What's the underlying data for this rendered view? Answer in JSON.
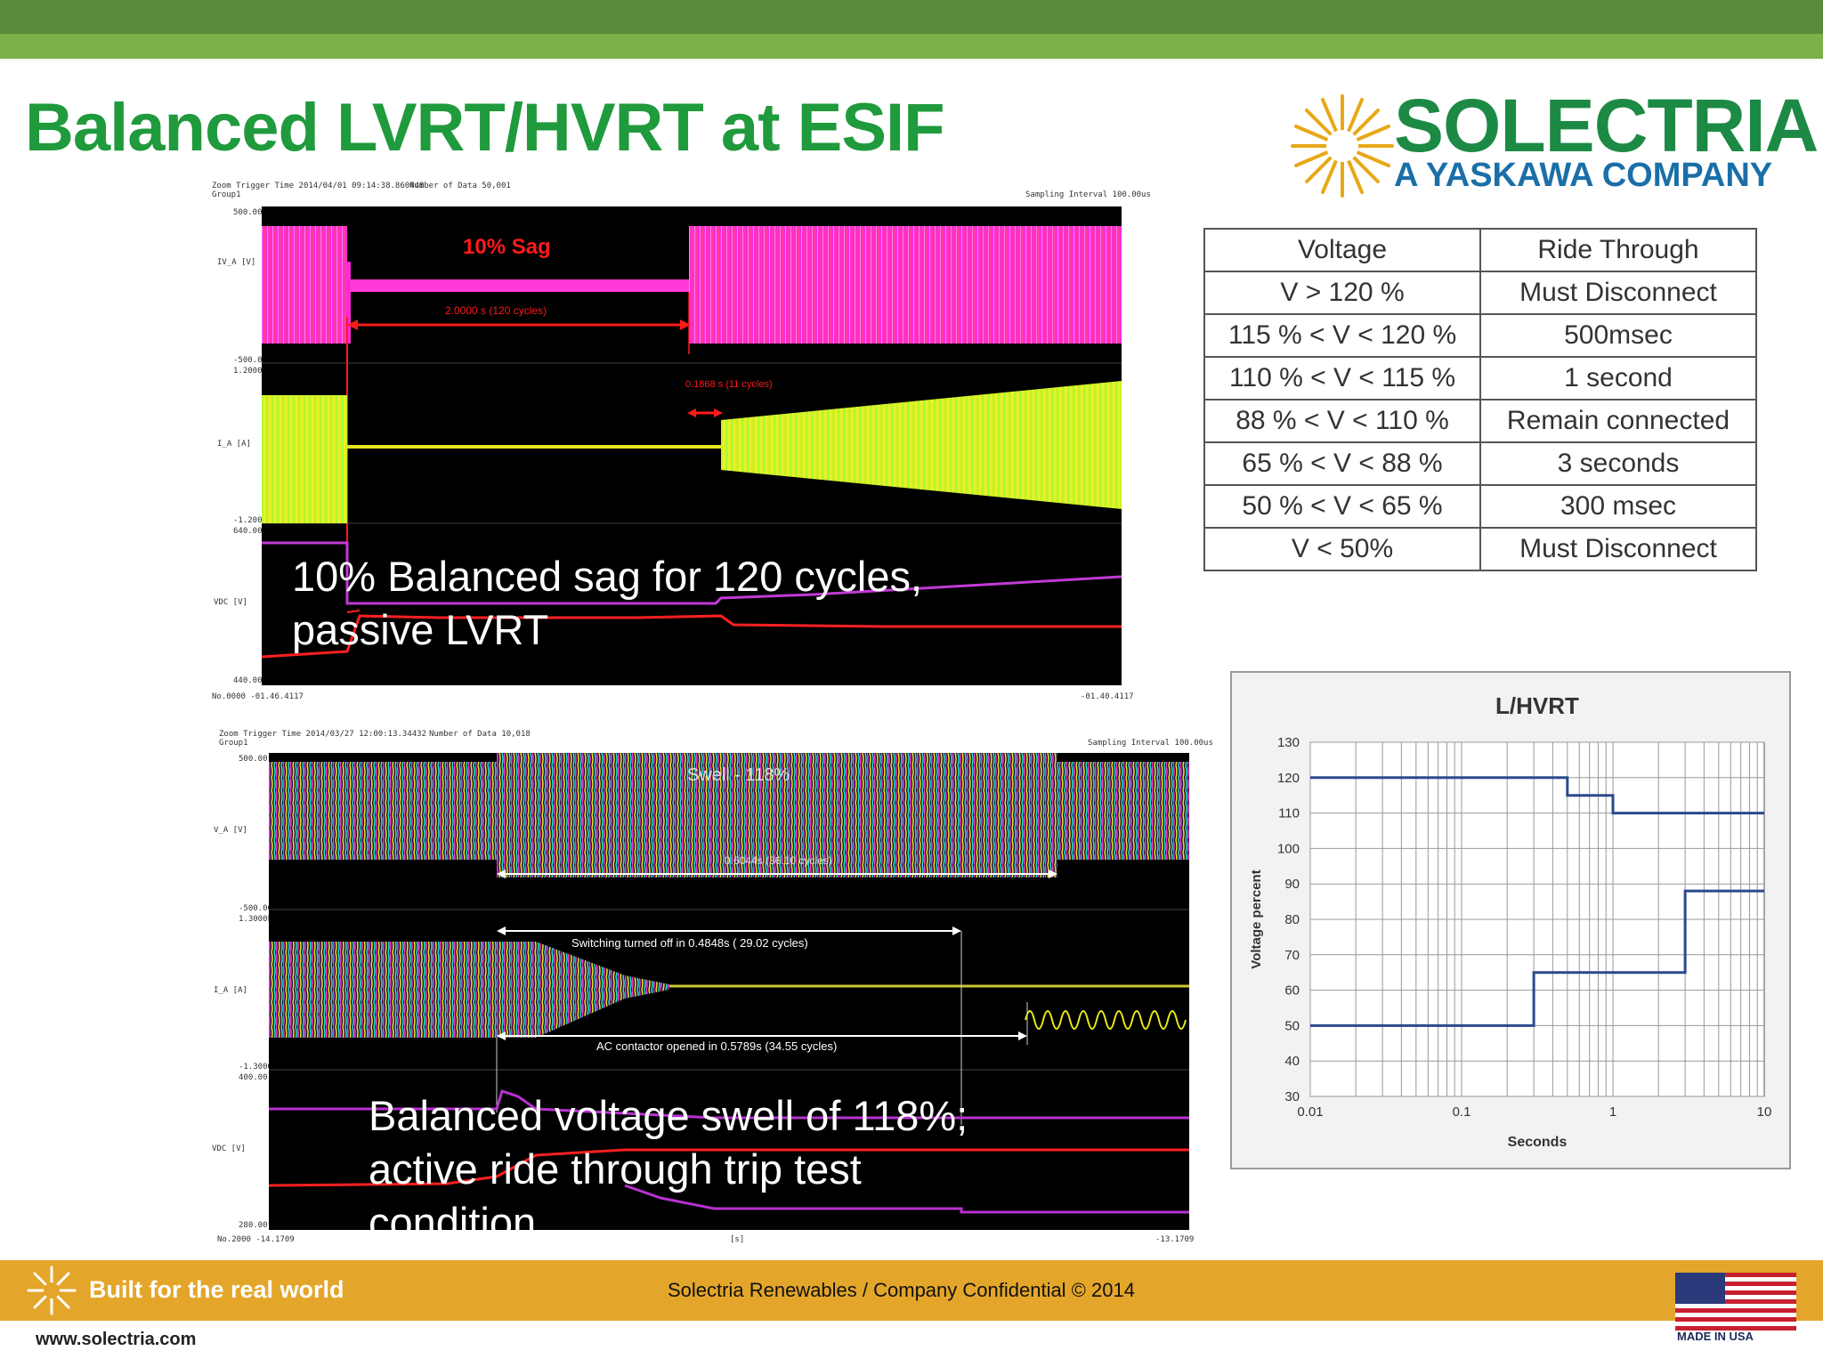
{
  "slide": {
    "title": "Balanced LVRT/HVRT at ESIF",
    "logo": {
      "main": "SOLECTRIA",
      "sub": "A YASKAWA COMPANY"
    }
  },
  "scope1": {
    "header_left": "Zoom Trigger Time 2014/04/01 09:14:38.860448",
    "header_group": "Group1",
    "header_mid": "Number of Data 50,001",
    "header_right": "Sampling Interval 100.00us",
    "sag_label": "10% Sag",
    "sag_duration": "2.0000 s (120 cycles)",
    "recovery_label": "0.1868 s (11 cycles)",
    "ch1_label": "IV_A [V]",
    "ch2_label": "I_A [A]",
    "ch3_label": "VDC [V]",
    "y_top": "500.00",
    "y_mid1": "-500.00",
    "y_mid2": "1.2000k",
    "y_mid3": "-1.2000k",
    "y_mid4": "640.00",
    "y_bot": "440.00",
    "footer_left": "No.0000  -01.46.4117",
    "footer_right": "-01.40.4117",
    "caption": [
      "10% Balanced sag for 120 cycles,",
      "passive LVRT"
    ]
  },
  "scope2": {
    "header_left": "Zoom Trigger Time 2014/03/27 12:00:13.34432",
    "header_group": "Group1",
    "header_mid": "Number of Data 10,018",
    "header_right": "Sampling Interval 100.00us",
    "swell_label": "Swell - 118%",
    "swell_duration": "0.6044s (36.10 cycles)",
    "switching_label": "Switching turned off in  0.4848s ( 29.02 cycles)",
    "contactor_label": "AC contactor opened in  0.5789s   (34.55 cycles)",
    "ch1_label": "V_A [V]",
    "ch2_label": "I_A [A]",
    "ch3_label": "VDC [V]",
    "y_top": "500.00",
    "y_mid1": "-500.00",
    "y_mid2": "1.3000k",
    "y_mid3": "-1.3000k",
    "y_mid4": "400.00",
    "y_bot": "280.00",
    "footer_left": "No.2000  -14.1709",
    "footer_mid": "[s]",
    "footer_right": "-13.1709",
    "caption": [
      "Balanced voltage swell of 118%;",
      "active ride through trip test",
      "condition"
    ]
  },
  "ride_table": {
    "headers": [
      "Voltage",
      "Ride Through"
    ],
    "rows": [
      [
        "V > 120 %",
        "Must Disconnect"
      ],
      [
        "115 % < V < 120 %",
        "500msec"
      ],
      [
        "110 % < V < 115 %",
        "1 second"
      ],
      [
        "88 % < V < 110 %",
        "Remain connected"
      ],
      [
        "65 % < V < 88 %",
        "3 seconds"
      ],
      [
        "50 % < V < 65 %",
        "300 msec"
      ],
      [
        "V < 50%",
        "Must Disconnect"
      ]
    ]
  },
  "chart_data": {
    "type": "line",
    "title": "L/HVRT",
    "xlabel": "Seconds",
    "ylabel": "Voltage percent",
    "xscale": "log",
    "xlim": [
      0.01,
      10
    ],
    "ylim": [
      30,
      130
    ],
    "x_ticks": [
      "0.01",
      "0.1",
      "1",
      "10"
    ],
    "y_ticks": [
      "30",
      "40",
      "50",
      "60",
      "70",
      "80",
      "90",
      "100",
      "110",
      "120",
      "130"
    ],
    "grid": true,
    "color": "#2b4a8c",
    "series": [
      {
        "x": [
          0.01,
          0.5,
          0.5,
          1,
          1,
          10
        ],
        "y": [
          120,
          120,
          115,
          115,
          110,
          110
        ]
      },
      {
        "x": [
          0.01,
          0.3,
          0.3,
          3,
          3,
          10
        ],
        "y": [
          50,
          50,
          65,
          65,
          88,
          88
        ]
      }
    ]
  },
  "footer": {
    "tagline": "Built for the real world",
    "confidential": "Solectria Renewables / Company Confidential © 2014",
    "website": "www.solectria.com",
    "made_in": "MADE IN USA"
  }
}
